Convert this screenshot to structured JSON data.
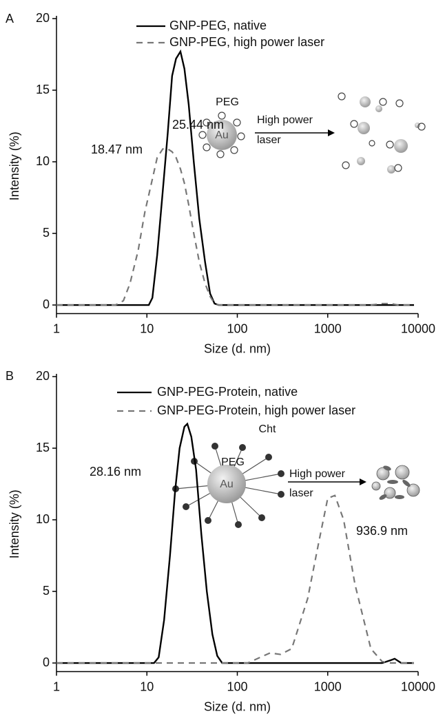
{
  "chart_data": [
    {
      "type": "line",
      "panel": "A",
      "x": [
        1,
        4.5,
        5.5,
        6.5,
        8,
        9.5,
        10.5,
        11.5,
        13,
        15,
        17,
        19,
        21,
        23.5,
        26,
        29,
        33,
        38,
        44,
        50,
        56,
        62,
        100,
        1000,
        3000,
        4000,
        5000,
        6000,
        9000
      ],
      "series": [
        {
          "name": "GNP-PEG, native",
          "color": "#000000",
          "dash": false,
          "values": [
            0,
            0,
            0,
            0,
            0,
            0,
            0,
            0.5,
            3.5,
            8,
            12,
            16,
            17.2,
            17.7,
            16.5,
            14,
            10,
            6,
            3,
            0.8,
            0.1,
            0,
            0,
            0,
            0,
            0,
            0,
            0,
            0
          ]
        },
        {
          "name": "GNP-PEG, high power laser",
          "color": "#777777",
          "dash": true,
          "values": [
            0,
            0,
            0.3,
            1.5,
            3.8,
            6.5,
            7.7,
            8.8,
            10.3,
            10.9,
            10.9,
            10.7,
            10.3,
            9.5,
            8.5,
            7,
            5,
            3,
            1.5,
            0.6,
            0.1,
            0,
            0,
            0,
            0,
            0.1,
            0.1,
            0,
            0
          ]
        }
      ],
      "x_label": "Size (d. nm)",
      "y_label": "Intensity (%)",
      "xlim": [
        1,
        10000
      ],
      "xticks": [
        1,
        10,
        100,
        1000,
        10000
      ],
      "log_x": true,
      "ylim": [
        -0.6,
        20
      ],
      "yticks": [
        0,
        5,
        10,
        15,
        20
      ],
      "annotations": [
        "25.44 nm",
        "18.47 nm"
      ],
      "inset": {
        "shell": "PEG",
        "core": "Au",
        "arrow": [
          "High power",
          "laser"
        ]
      }
    },
    {
      "type": "line",
      "panel": "B",
      "x": [
        1,
        12,
        13.5,
        15.5,
        18,
        20.5,
        23,
        26,
        28,
        31,
        35,
        40,
        46,
        53,
        60,
        68,
        80,
        130,
        180,
        230,
        300,
        400,
        600,
        800,
        1000,
        1200,
        1500,
        2000,
        3000,
        4000,
        5000,
        5500,
        6500,
        9000
      ],
      "series": [
        {
          "name": "GNP-PEG-Protein, native",
          "color": "#000000",
          "dash": false,
          "values": [
            0,
            0,
            0.4,
            3,
            7.5,
            12,
            15,
            16.5,
            16.7,
            15.8,
            13.5,
            9,
            5,
            2,
            0.5,
            0,
            0,
            0,
            0,
            0,
            0,
            0,
            0,
            0,
            0,
            0,
            0,
            0,
            0,
            0,
            0.2,
            0.3,
            0,
            0
          ]
        },
        {
          "name": "GNP-PEG-Protein, high power laser",
          "color": "#777777",
          "dash": true,
          "values": [
            0,
            0,
            0,
            0,
            0,
            0,
            0,
            0,
            0,
            0,
            0,
            0,
            0,
            0,
            0,
            0,
            0,
            0,
            0.4,
            0.7,
            0.6,
            1,
            4.5,
            8.5,
            11.5,
            11.7,
            10,
            5.5,
            1,
            0.1,
            0,
            0,
            0,
            0
          ]
        }
      ],
      "x_label": "Size (d. nm)",
      "y_label": "Intensity (%)",
      "xlim": [
        1,
        10000
      ],
      "xticks": [
        1,
        10,
        100,
        1000,
        10000
      ],
      "log_x": true,
      "ylim": [
        -0.6,
        20
      ],
      "yticks": [
        0,
        5,
        10,
        15,
        20
      ],
      "annotations": [
        "28.16 nm",
        "936.9 nm"
      ],
      "inset": {
        "ligand": "Cht",
        "shell": "PEG",
        "core": "Au",
        "arrow": [
          "High power",
          "laser"
        ]
      }
    }
  ]
}
